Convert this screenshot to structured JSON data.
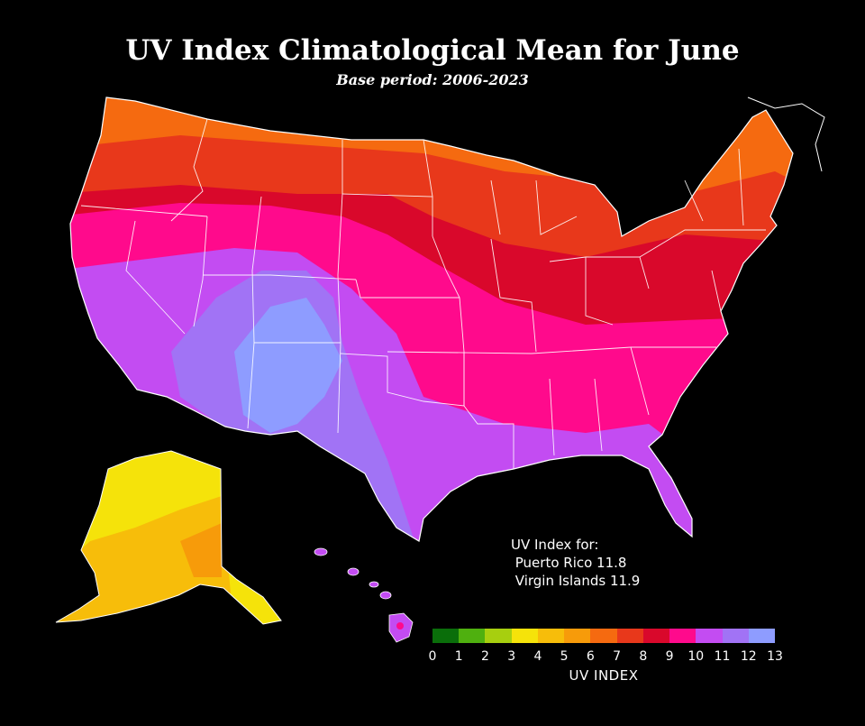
{
  "title": "UV Index Climatological Mean for June",
  "subtitle": "Base period: 2006-2023",
  "note": {
    "line1": "UV Index for:",
    "line2": " Puerto Rico 11.8",
    "line3": " Virgin Islands 11.9"
  },
  "legend": {
    "label": "UV INDEX",
    "ticks": [
      "0",
      "1",
      "2",
      "3",
      "4",
      "5",
      "6",
      "7",
      "8",
      "9",
      "10",
      "11",
      "12",
      "13"
    ],
    "colors": [
      "#0a6e0a",
      "#4fb00f",
      "#a7cf0f",
      "#f5e30a",
      "#f7bd0a",
      "#f79b0a",
      "#f56a10",
      "#e8381b",
      "#d9082b",
      "#ff0a8c",
      "#c34cf2",
      "#a173f5",
      "#8e9cff"
    ]
  },
  "colors": {
    "background": "#000000",
    "borders": "#ffffff"
  }
}
